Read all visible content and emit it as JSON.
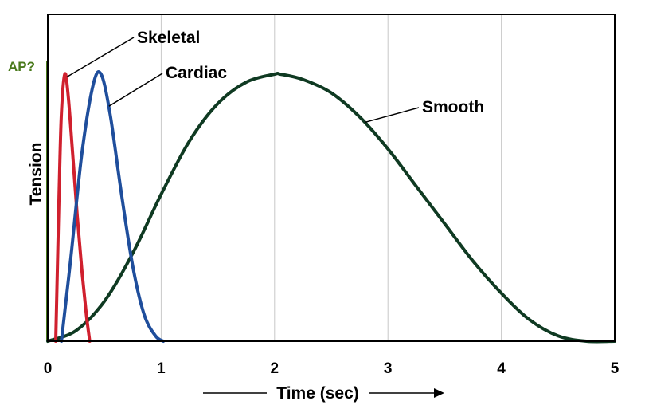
{
  "chart_data": {
    "type": "line",
    "title": "",
    "xlabel": "Time (sec)",
    "ylabel": "Tension",
    "xlim": [
      0,
      5
    ],
    "ylim": [
      0,
      1
    ],
    "x_ticks": [
      "0",
      "1",
      "2",
      "3",
      "4",
      "5"
    ],
    "grid": "vertical",
    "legend": "none (inline labels)",
    "series": [
      {
        "name": "Skeletal",
        "color": "#d0202e",
        "x": [
          0.07,
          0.1,
          0.12,
          0.15,
          0.18,
          0.22,
          0.26,
          0.3,
          0.34,
          0.37
        ],
        "values": [
          0.0,
          0.55,
          0.85,
          1.0,
          0.92,
          0.7,
          0.47,
          0.27,
          0.1,
          0.0
        ]
      },
      {
        "name": "Cardiac",
        "color": "#1f4e9c",
        "x": [
          0.12,
          0.2,
          0.3,
          0.4,
          0.47,
          0.55,
          0.65,
          0.75,
          0.85,
          0.95,
          1.02
        ],
        "values": [
          0.0,
          0.3,
          0.7,
          0.96,
          1.0,
          0.85,
          0.55,
          0.28,
          0.1,
          0.02,
          0.0
        ]
      },
      {
        "name": "Smooth",
        "color": "#0f3a22",
        "x": [
          0.0,
          0.25,
          0.5,
          0.75,
          1.0,
          1.25,
          1.5,
          1.75,
          2.0,
          2.05,
          2.25,
          2.5,
          2.75,
          3.0,
          3.25,
          3.5,
          3.75,
          4.0,
          4.25,
          4.5,
          4.75,
          5.0
        ],
        "values": [
          0.0,
          0.04,
          0.15,
          0.33,
          0.55,
          0.75,
          0.89,
          0.97,
          1.0,
          1.0,
          0.98,
          0.93,
          0.84,
          0.72,
          0.58,
          0.44,
          0.3,
          0.18,
          0.08,
          0.02,
          0.0,
          0.0
        ]
      }
    ],
    "annotations": {
      "ap_label": "AP?",
      "ap_color": "#4a7a1c",
      "ap_bar_x": 0.0,
      "ap_bar_top": 1.05
    }
  }
}
